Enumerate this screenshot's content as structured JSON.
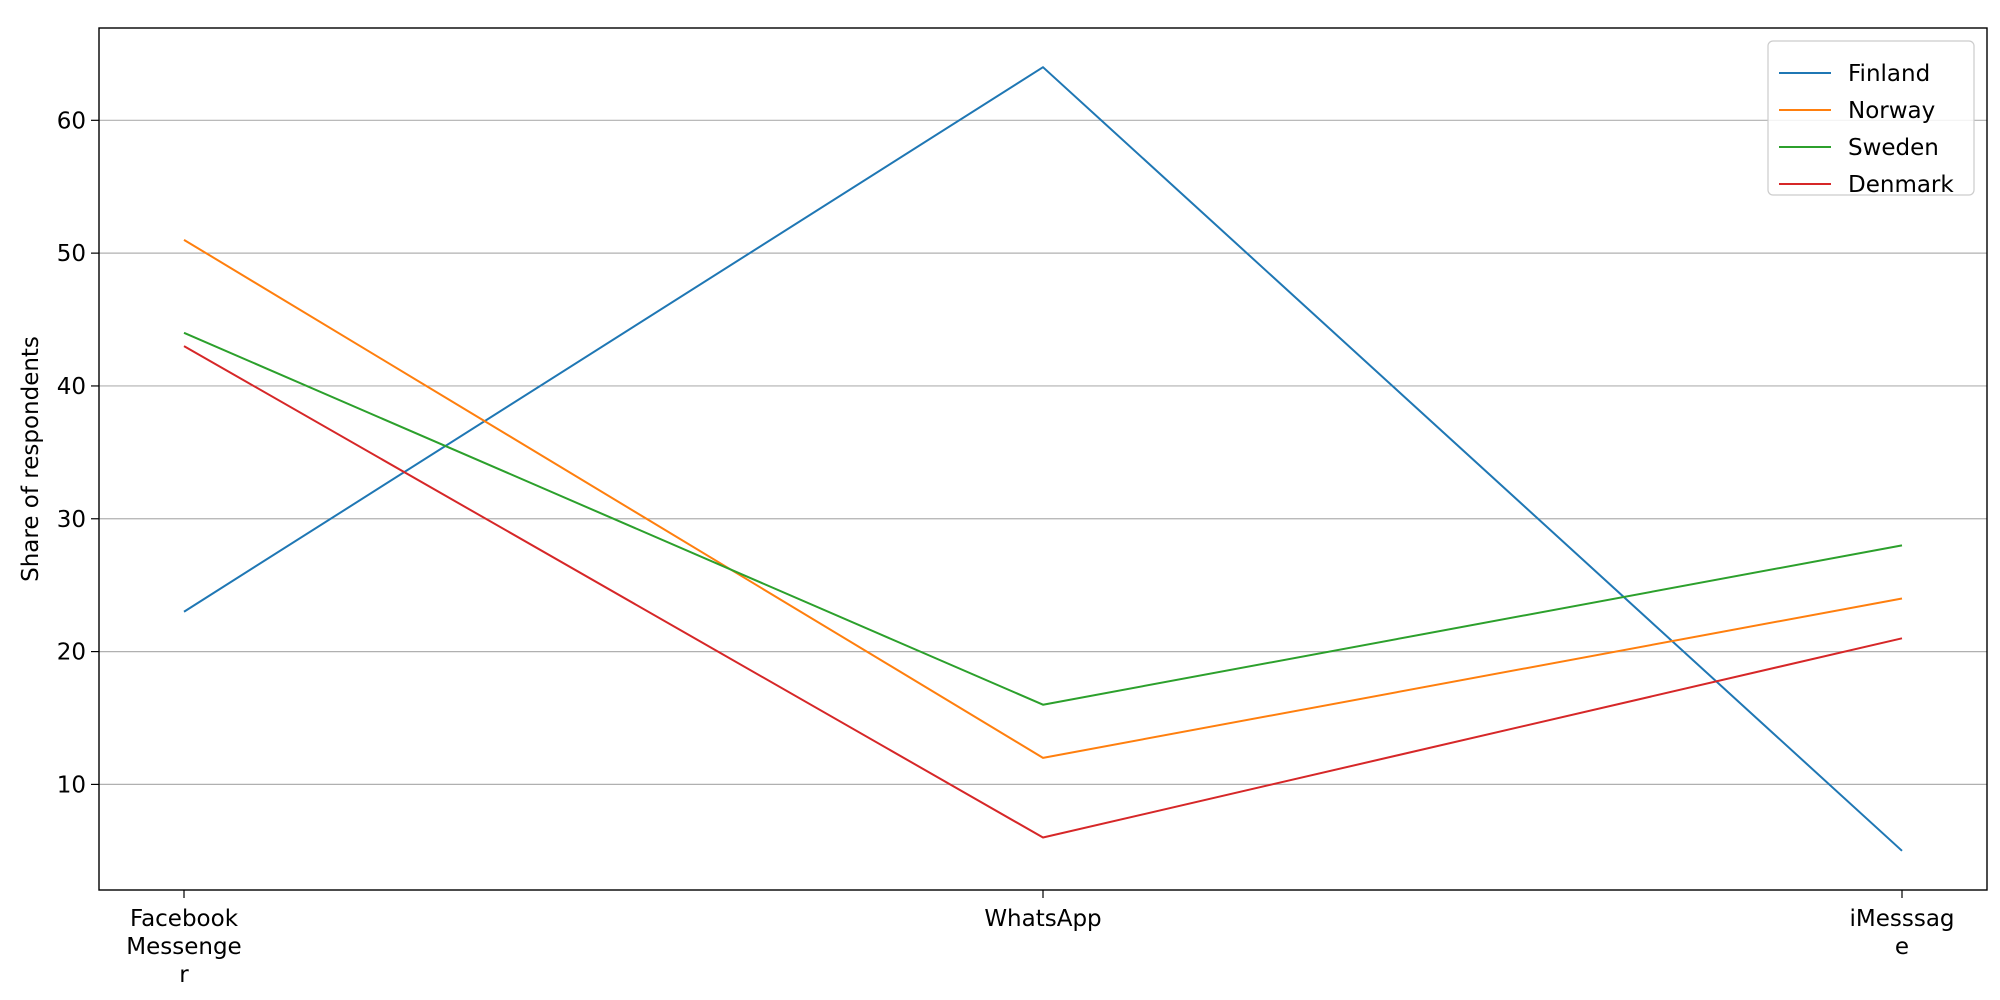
{
  "chart_data": {
    "type": "line",
    "categories": [
      [
        "Facebook",
        "Messenge",
        "r"
      ],
      [
        "WhatsApp"
      ],
      [
        "iMesssag",
        "e"
      ]
    ],
    "series": [
      {
        "name": "Finland",
        "values": [
          23,
          64,
          5
        ],
        "color": "#1f77b4"
      },
      {
        "name": "Norway",
        "values": [
          51,
          12,
          24
        ],
        "color": "#ff7f0e"
      },
      {
        "name": "Sweden",
        "values": [
          44,
          16,
          28
        ],
        "color": "#2ca02c"
      },
      {
        "name": "Denmark",
        "values": [
          43,
          6,
          21
        ],
        "color": "#d62728"
      }
    ],
    "ylabel": "Share of respondents",
    "yticks": [
      10,
      20,
      30,
      40,
      50,
      60
    ],
    "ylim": [
      2.05,
      66.95
    ],
    "grid": "horizontal",
    "legend_position": "top-right"
  }
}
